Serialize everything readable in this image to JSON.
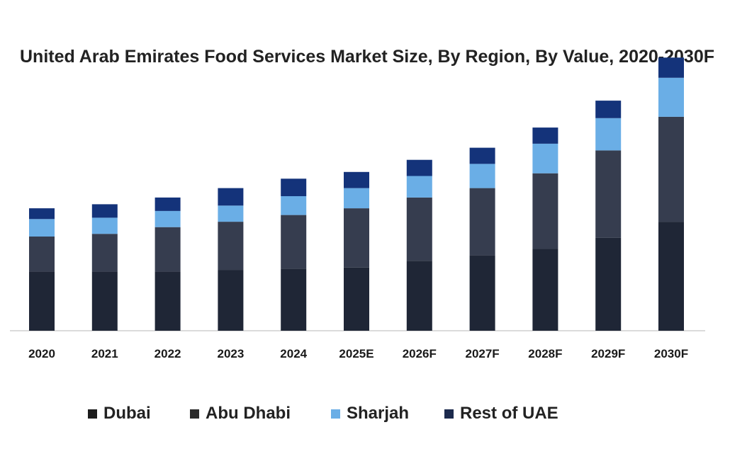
{
  "chart_data": {
    "type": "bar",
    "stacked": true,
    "title": "United Arab Emirates Food Services Market Size, By Region, By Value, 2020-2030F",
    "xlabel": "",
    "ylabel": "",
    "ylim": [
      0,
      1
    ],
    "grid": false,
    "legend_position": "bottom",
    "categories": [
      "2020",
      "2021",
      "2022",
      "2023",
      "2024",
      "2025E",
      "2026F",
      "2027F",
      "2028F",
      "2029F",
      "2030F"
    ],
    "series": [
      {
        "name": "Dubai",
        "color": "#1f2636",
        "values": [
          0.22,
          0.22,
          0.22,
          0.225,
          0.23,
          0.235,
          0.26,
          0.28,
          0.305,
          0.345,
          0.405
        ]
      },
      {
        "name": "Abu Dhabi",
        "color": "#363d4f",
        "values": [
          0.13,
          0.14,
          0.165,
          0.18,
          0.2,
          0.22,
          0.235,
          0.25,
          0.28,
          0.325,
          0.39
        ]
      },
      {
        "name": "Sharjah",
        "color": "#6aaee6",
        "values": [
          0.065,
          0.06,
          0.06,
          0.06,
          0.07,
          0.075,
          0.08,
          0.09,
          0.11,
          0.12,
          0.145
        ]
      },
      {
        "name": "Rest of UAE",
        "color": "#14337a",
        "values": [
          0.04,
          0.05,
          0.05,
          0.065,
          0.065,
          0.06,
          0.06,
          0.06,
          0.06,
          0.065,
          0.075
        ]
      }
    ]
  },
  "legend": {
    "items": [
      {
        "label": "Dubai",
        "color": "#1c1c1c"
      },
      {
        "label": "Abu Dhabi",
        "color": "#2a2a2a"
      },
      {
        "label": "Sharjah",
        "color": "#6aaee6"
      },
      {
        "label": "Rest of UAE",
        "color": "#1c2a4d"
      }
    ]
  }
}
